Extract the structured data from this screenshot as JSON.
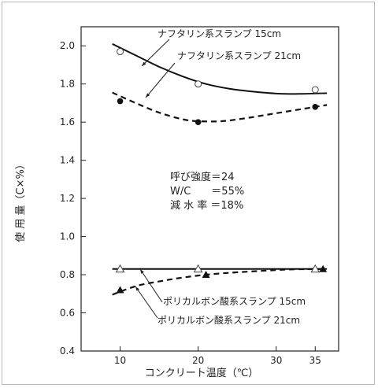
{
  "chart_data": {
    "type": "line",
    "xlabel": "コンクリート温度（℃）",
    "ylabel": "使 用 量（C×%）",
    "xlim": [
      5,
      38
    ],
    "ylim": [
      0.4,
      2.1
    ],
    "x_ticks": [
      10,
      20,
      30,
      35
    ],
    "y_ticks": [
      0.4,
      0.6,
      0.8,
      1.0,
      1.2,
      1.4,
      1.6,
      1.8,
      2.0
    ],
    "x_tick_labels": [
      "10",
      "20",
      "30",
      "35"
    ],
    "y_tick_labels": [
      "0.4",
      "0.6",
      "0.8",
      "1.0",
      "1.2",
      "1.4",
      "1.6",
      "1.8",
      "2.0"
    ],
    "grid": false,
    "series": [
      {
        "name": "ナフタリン系スランプ 15cm",
        "marker": "open-circle",
        "line": "solid",
        "points": [
          {
            "x": 10,
            "y": 1.97
          },
          {
            "x": 20,
            "y": 1.8
          },
          {
            "x": 35,
            "y": 1.77
          }
        ],
        "curve": [
          {
            "x": 9,
            "y": 2.01
          },
          {
            "x": 12,
            "y": 1.95
          },
          {
            "x": 15,
            "y": 1.89
          },
          {
            "x": 18,
            "y": 1.84
          },
          {
            "x": 21,
            "y": 1.8
          },
          {
            "x": 24,
            "y": 1.775
          },
          {
            "x": 27,
            "y": 1.76
          },
          {
            "x": 30,
            "y": 1.75
          },
          {
            "x": 33,
            "y": 1.748
          },
          {
            "x": 36.5,
            "y": 1.752
          }
        ]
      },
      {
        "name": "ナフタリン系スランプ 21cm",
        "marker": "filled-circle",
        "line": "dashed",
        "points": [
          {
            "x": 10,
            "y": 1.71
          },
          {
            "x": 20,
            "y": 1.6
          },
          {
            "x": 35,
            "y": 1.68
          }
        ],
        "curve": [
          {
            "x": 9,
            "y": 1.755
          },
          {
            "x": 12,
            "y": 1.7
          },
          {
            "x": 15,
            "y": 1.65
          },
          {
            "x": 18,
            "y": 1.615
          },
          {
            "x": 20,
            "y": 1.605
          },
          {
            "x": 23,
            "y": 1.605
          },
          {
            "x": 26,
            "y": 1.62
          },
          {
            "x": 29,
            "y": 1.64
          },
          {
            "x": 32,
            "y": 1.66
          },
          {
            "x": 36.5,
            "y": 1.69
          }
        ]
      },
      {
        "name": "ポリカルボン酸系スランプ 15cm",
        "marker": "open-triangle",
        "line": "solid",
        "points": [
          {
            "x": 10,
            "y": 0.83
          },
          {
            "x": 20,
            "y": 0.83
          },
          {
            "x": 35,
            "y": 0.83
          }
        ],
        "curve": [
          {
            "x": 9,
            "y": 0.83
          },
          {
            "x": 36.5,
            "y": 0.83
          }
        ]
      },
      {
        "name": "ポリカルボン酸系スランプ 21cm",
        "marker": "filled-triangle",
        "line": "dashed",
        "points": [
          {
            "x": 10,
            "y": 0.72
          },
          {
            "x": 21,
            "y": 0.8
          },
          {
            "x": 36,
            "y": 0.83
          }
        ],
        "curve": [
          {
            "x": 9,
            "y": 0.695
          },
          {
            "x": 12,
            "y": 0.74
          },
          {
            "x": 15,
            "y": 0.765
          },
          {
            "x": 18,
            "y": 0.785
          },
          {
            "x": 21,
            "y": 0.8
          },
          {
            "x": 24,
            "y": 0.81
          },
          {
            "x": 28,
            "y": 0.82
          },
          {
            "x": 32,
            "y": 0.828
          },
          {
            "x": 36.5,
            "y": 0.83
          }
        ]
      }
    ],
    "annotations": {
      "naph15": "ナフタリン系スランプ 15cm",
      "naph21": "ナフタリン系スランプ 21cm",
      "poly15": "ポリカルボン酸系スランプ 15cm",
      "poly21": "ポリカルボン酸系スランプ 21cm"
    },
    "note_lines": [
      "呼び強度＝24",
      "W/C　　＝55%",
      "減 水 率 ＝18%"
    ]
  }
}
